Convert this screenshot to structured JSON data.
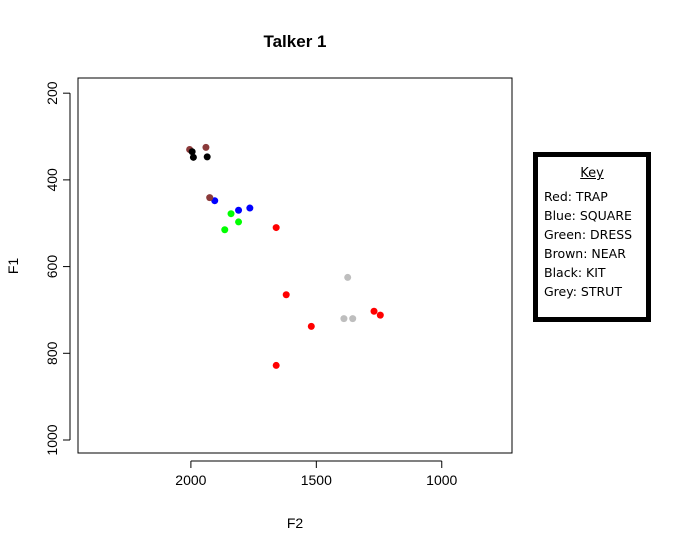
{
  "chart_data": {
    "type": "scatter",
    "title": "Talker 1",
    "xlabel": "F2",
    "ylabel": "F1",
    "xlim": [
      2450,
      720
    ],
    "ylim": [
      1030,
      165
    ],
    "x_ticks": [
      2000,
      1500,
      1000
    ],
    "y_ticks": [
      200,
      400,
      600,
      800,
      1000
    ],
    "x_axis_reversed": true,
    "y_axis_reversed": true,
    "grid": false,
    "series": [
      {
        "name": "TRAP",
        "color": "#ff0000",
        "points": [
          [
            1660,
            510
          ],
          [
            1620,
            665
          ],
          [
            1520,
            738
          ],
          [
            1270,
            703
          ],
          [
            1245,
            712
          ],
          [
            1660,
            828
          ]
        ]
      },
      {
        "name": "SQUARE",
        "color": "#0000ff",
        "points": [
          [
            1905,
            448
          ],
          [
            1810,
            470
          ],
          [
            1765,
            465
          ]
        ]
      },
      {
        "name": "DRESS",
        "color": "#00ff00",
        "points": [
          [
            1840,
            478
          ],
          [
            1810,
            497
          ],
          [
            1865,
            515
          ]
        ]
      },
      {
        "name": "NEAR",
        "color": "#8b3a3a",
        "points": [
          [
            2005,
            330
          ],
          [
            1940,
            325
          ],
          [
            1925,
            441
          ]
        ]
      },
      {
        "name": "KIT",
        "color": "#000000",
        "points": [
          [
            1995,
            335
          ],
          [
            1990,
            348
          ],
          [
            1935,
            347
          ]
        ]
      },
      {
        "name": "STRUT",
        "color": "#bebebe",
        "points": [
          [
            1375,
            625
          ],
          [
            1390,
            720
          ],
          [
            1355,
            720
          ]
        ]
      }
    ]
  },
  "key": {
    "title": "Key",
    "entries": [
      "Red: TRAP",
      "Blue: SQUARE",
      "Green: DRESS",
      "Brown: NEAR",
      "Black: KIT",
      "Grey: STRUT"
    ]
  }
}
